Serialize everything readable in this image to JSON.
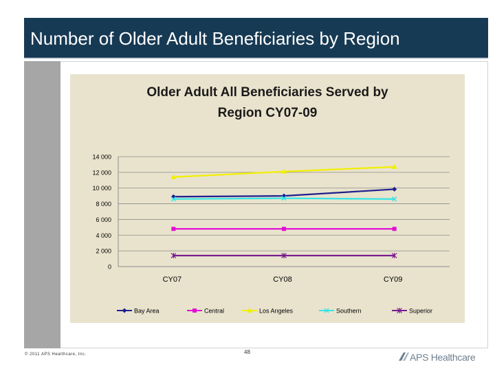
{
  "slide": {
    "title": "Number of Older Adult Beneficiaries by Region",
    "copyright": "© 2011 APS Healthcare, Inc.",
    "page_number": "48",
    "logo_text": "APS Healthcare"
  },
  "colors": {
    "title_bar": "#173a54",
    "plot_bg": "#e9e3cd",
    "Bay Area": "#1f1f8f",
    "Central": "#e011d3",
    "Los Angeles": "#f2ef00",
    "Southern": "#33e6e6",
    "Superior": "#7a1a8f"
  },
  "chart_data": {
    "type": "line",
    "title_lines": [
      "Older Adult All Beneficiaries Served by",
      "Region CY07-09"
    ],
    "categories": [
      "CY07",
      "CY08",
      "CY09"
    ],
    "y_ticks": [
      "0",
      "2 000",
      "4 000",
      "6 000",
      "8 000",
      "10 000",
      "12 000",
      "14 000"
    ],
    "ylim": [
      0,
      14000
    ],
    "grid": true,
    "legend_position": "bottom",
    "series": [
      {
        "name": "Bay Area",
        "values": [
          8900,
          9000,
          9850
        ],
        "marker": "diamond"
      },
      {
        "name": "Central",
        "values": [
          4800,
          4800,
          4800
        ],
        "marker": "square"
      },
      {
        "name": "Los Angeles",
        "values": [
          11400,
          12100,
          12700
        ],
        "marker": "triangle"
      },
      {
        "name": "Southern",
        "values": [
          8600,
          8700,
          8600
        ],
        "marker": "x"
      },
      {
        "name": "Superior",
        "values": [
          1400,
          1400,
          1400
        ],
        "marker": "star"
      }
    ]
  }
}
